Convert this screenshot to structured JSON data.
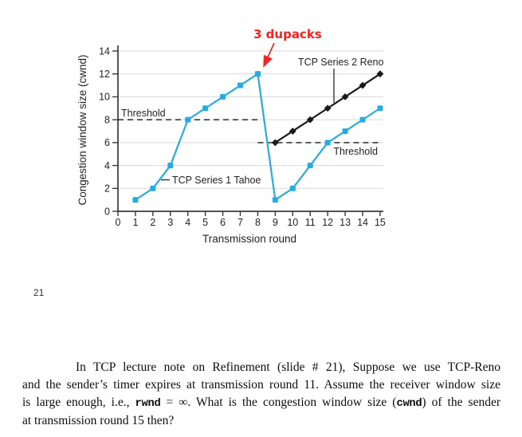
{
  "slide_number": "21",
  "colors": {
    "tahoe_blue": "#29abe2",
    "reno_black": "#1a1a1a",
    "annotation_red": "#f5231f",
    "grid_gray": "#d9d9d9",
    "axis_dark": "#3a3a3a",
    "text_dark": "#231f20"
  },
  "chart_data": {
    "type": "line",
    "title": "",
    "xlabel": "Transmission round",
    "ylabel": "Congestion window size (cwnd)",
    "xlim": [
      0,
      15
    ],
    "ylim": [
      0,
      14
    ],
    "xticks": [
      0,
      1,
      2,
      3,
      4,
      5,
      6,
      7,
      8,
      9,
      10,
      11,
      12,
      13,
      14,
      15
    ],
    "yticks": [
      0,
      2,
      4,
      6,
      8,
      10,
      12,
      14
    ],
    "grid": "horizontal-even",
    "legend_position": "inline-labels",
    "series": [
      {
        "name": "TCP Series 1 Tahoe",
        "marker": "square",
        "color": "#29abe2",
        "x": [
          1,
          2,
          3,
          4,
          5,
          6,
          7,
          8,
          9,
          10,
          11,
          12,
          13,
          14,
          15
        ],
        "values": [
          1,
          2,
          4,
          8,
          9,
          10,
          11,
          12,
          1,
          2,
          4,
          6,
          7,
          8,
          9
        ]
      },
      {
        "name": "TCP Series 2 Reno",
        "marker": "diamond",
        "color": "#1a1a1a",
        "x": [
          9,
          10,
          11,
          12,
          13,
          14,
          15
        ],
        "values": [
          6,
          7,
          8,
          9,
          10,
          11,
          12
        ]
      }
    ],
    "thresholds": [
      {
        "label": "Threshold",
        "y": 8,
        "x_from": 0,
        "x_to": 8
      },
      {
        "label": "Threshold",
        "y": 6,
        "x_from": 8,
        "x_to": 15
      }
    ],
    "annotations": [
      {
        "text": "3 dupacks",
        "color": "#f5231f",
        "target_point": [
          8,
          12
        ]
      }
    ]
  },
  "question": {
    "lines": [
      [
        {
          "t": "In TCP lecture note on Refinement (slide # 21), Suppose we use TCP-Reno"
        }
      ],
      [
        {
          "t": "and the sender’s timer expires at transmission round 11. Assume the receiver window size"
        }
      ],
      [
        {
          "t": "is large enough, i.e., "
        },
        {
          "t": "rwnd",
          "mono": true
        },
        {
          "t": " = ∞. What is the congestion window size ("
        },
        {
          "t": "cwnd",
          "mono": true
        },
        {
          "t": ") of the sender"
        }
      ],
      [
        {
          "t": "at transmission round 15 then?"
        }
      ]
    ]
  }
}
